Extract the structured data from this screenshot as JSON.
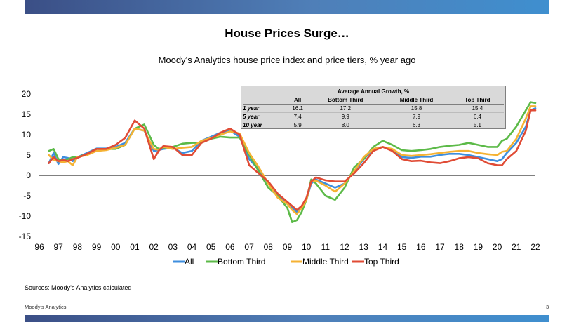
{
  "header": {
    "title": "House Prices Surge…",
    "subtitle": "Moody’s Analytics house price index and price tiers, % year ago"
  },
  "stats_table": {
    "caption": "Average Annual Growth, %",
    "columns": [
      "All",
      "Bottom Third",
      "Middle Third",
      "Top Third"
    ],
    "rows": [
      {
        "label": "1 year",
        "values": [
          "16.1",
          "17.2",
          "15.8",
          "15.4"
        ]
      },
      {
        "label": "5 year",
        "values": [
          "7.4",
          "9.9",
          "7.9",
          "6.4"
        ]
      },
      {
        "label": "10 year",
        "values": [
          "5.9",
          "8.0",
          "6.3",
          "5.1"
        ]
      }
    ]
  },
  "footer": {
    "source": "Sources: Moody’s Analytics calculated",
    "org": "Moody’s Analytics",
    "page": "3"
  },
  "chart_data": {
    "type": "line",
    "title": "",
    "xlabel": "",
    "ylabel": "",
    "xlim": [
      1996,
      2022
    ],
    "ylim": [
      -15,
      20
    ],
    "yticks": [
      20,
      15,
      10,
      5,
      0,
      -5,
      -10,
      -15
    ],
    "xtick_labels": [
      "96",
      "97",
      "98",
      "99",
      "00",
      "01",
      "02",
      "03",
      "04",
      "05",
      "06",
      "07",
      "08",
      "09",
      "10",
      "11",
      "12",
      "13",
      "14",
      "15",
      "16",
      "17",
      "18",
      "19",
      "20",
      "21",
      "22"
    ],
    "grid": false,
    "legend_position": "bottom",
    "series": [
      {
        "name": "All",
        "color": "#3e8ede",
        "x": [
          1996.5,
          1996.75,
          1997,
          1997.25,
          1997.5,
          1997.75,
          1998,
          1998.5,
          1999,
          1999.5,
          2000,
          2000.5,
          2001,
          2001.5,
          2002,
          2002.25,
          2002.5,
          2003,
          2003.5,
          2004,
          2004.5,
          2005,
          2005.5,
          2006,
          2006.5,
          2007,
          2007.5,
          2008,
          2008.5,
          2009,
          2009.25,
          2009.5,
          2009.75,
          2010,
          2010.25,
          2010.5,
          2011,
          2011.5,
          2012,
          2012.5,
          2013,
          2013.5,
          2014,
          2014.5,
          2015,
          2015.5,
          2016,
          2016.5,
          2017,
          2017.5,
          2018,
          2018.5,
          2019,
          2019.5,
          2020,
          2020.25,
          2020.5,
          2021,
          2021.5,
          2021.75,
          2022
        ],
        "y": [
          3,
          5.5,
          2.8,
          4.5,
          4.3,
          3.5,
          4.5,
          5.5,
          6.6,
          6.6,
          7,
          8,
          11.5,
          11,
          6,
          6.2,
          6.5,
          6.8,
          5.5,
          6,
          8.5,
          9.5,
          10.5,
          11,
          9.5,
          4,
          1.5,
          -2,
          -5,
          -7,
          -8,
          -9,
          -8,
          -6,
          -2,
          -1,
          -2,
          -3,
          -2,
          1,
          4,
          6.5,
          7,
          6.3,
          4.5,
          4.3,
          4.6,
          4.6,
          5,
          5.3,
          5.3,
          5,
          4.5,
          4,
          3.5,
          4,
          5.5,
          8,
          12,
          16,
          16.5
        ]
      },
      {
        "name": "Bottom Third",
        "color": "#5cba48",
        "x": [
          1996.5,
          1996.75,
          1997,
          1997.25,
          1997.5,
          1997.75,
          1998,
          1998.5,
          1999,
          1999.5,
          2000,
          2000.5,
          2001,
          2001.5,
          2002,
          2002.25,
          2002.5,
          2003,
          2003.5,
          2004,
          2004.5,
          2005,
          2005.5,
          2006,
          2006.5,
          2007,
          2007.5,
          2008,
          2008.5,
          2009,
          2009.25,
          2009.5,
          2009.75,
          2010,
          2010.25,
          2010.5,
          2011,
          2011.5,
          2012,
          2012.5,
          2013,
          2013.5,
          2014,
          2014.5,
          2015,
          2015.5,
          2016,
          2016.5,
          2017,
          2017.5,
          2018,
          2018.5,
          2019,
          2019.5,
          2020,
          2020.25,
          2020.5,
          2021,
          2021.5,
          2021.75,
          2022
        ],
        "y": [
          6,
          6.5,
          4,
          3.8,
          4,
          4.5,
          4.5,
          5.2,
          6.5,
          6.5,
          6.5,
          7.5,
          11.5,
          12.5,
          7.5,
          6.5,
          6.8,
          7,
          7.8,
          8,
          8,
          9,
          9.5,
          9.3,
          9.3,
          5,
          1,
          -3,
          -5,
          -8,
          -11.5,
          -11,
          -9,
          -6,
          -1,
          -2,
          -5,
          -6,
          -3,
          2,
          4,
          7,
          8.5,
          7.5,
          6.2,
          6,
          6.2,
          6.5,
          7,
          7.3,
          7.5,
          8,
          7.5,
          7,
          7,
          8.5,
          9,
          12,
          16,
          18,
          17.8
        ]
      },
      {
        "name": "Middle Third",
        "color": "#f5b233",
        "x": [
          1996.5,
          1996.75,
          1997,
          1997.25,
          1997.5,
          1997.75,
          1998,
          1998.5,
          1999,
          1999.5,
          2000,
          2000.5,
          2001,
          2001.5,
          2002,
          2002.25,
          2002.5,
          2003,
          2003.5,
          2004,
          2004.5,
          2005,
          2005.5,
          2006,
          2006.5,
          2007,
          2007.5,
          2008,
          2008.5,
          2009,
          2009.25,
          2009.5,
          2009.75,
          2010,
          2010.25,
          2010.5,
          2011,
          2011.5,
          2012,
          2012.5,
          2013,
          2013.5,
          2014,
          2014.5,
          2015,
          2015.5,
          2016,
          2016.5,
          2017,
          2017.5,
          2018,
          2018.5,
          2019,
          2019.5,
          2020,
          2020.25,
          2020.5,
          2021,
          2021.5,
          2021.75,
          2022
        ],
        "y": [
          5,
          3.8,
          3.5,
          3.2,
          3.5,
          2.5,
          4.5,
          5,
          6,
          6.2,
          6.8,
          7.5,
          11.5,
          11,
          6.5,
          6.3,
          7,
          6.5,
          6.8,
          7,
          8.5,
          9.2,
          10,
          10.8,
          10.3,
          5.5,
          2,
          -2,
          -5.5,
          -7,
          -8.5,
          -9.5,
          -8,
          -6,
          -1.5,
          -1.3,
          -2.5,
          -4,
          -2,
          1,
          4.5,
          6.5,
          7,
          6.5,
          5,
          4.8,
          5,
          5.2,
          5.5,
          5.8,
          6,
          6,
          5.5,
          5.2,
          5,
          5.8,
          6,
          9,
          14,
          17,
          17
        ]
      },
      {
        "name": "Top Third",
        "color": "#e04b35",
        "x": [
          1996.5,
          1996.75,
          1997,
          1997.25,
          1997.5,
          1997.75,
          1998,
          1998.5,
          1999,
          1999.5,
          2000,
          2000.5,
          2001,
          2001.5,
          2002,
          2002.25,
          2002.5,
          2003,
          2003.5,
          2004,
          2004.5,
          2005,
          2005.5,
          2006,
          2006.5,
          2007,
          2007.5,
          2008,
          2008.5,
          2009,
          2009.25,
          2009.5,
          2009.75,
          2010,
          2010.25,
          2010.5,
          2011,
          2011.5,
          2012,
          2012.5,
          2013,
          2013.5,
          2014,
          2014.5,
          2015,
          2015.5,
          2016,
          2016.5,
          2017,
          2017.5,
          2018,
          2018.5,
          2019,
          2019.5,
          2020,
          2020.25,
          2020.5,
          2021,
          2021.5,
          2021.75,
          2022
        ],
        "y": [
          3,
          4.5,
          3.5,
          3.8,
          3.5,
          4,
          4.3,
          5.3,
          6.5,
          6.5,
          7.5,
          9.2,
          13.5,
          11.5,
          4,
          6,
          7.2,
          7,
          5,
          5,
          8,
          9,
          10.5,
          11.5,
          10,
          2.5,
          0.5,
          -1.5,
          -4.5,
          -6.5,
          -7.5,
          -8.5,
          -7.5,
          -5.5,
          -1.5,
          -0.5,
          -1.2,
          -1.5,
          -1.5,
          0.5,
          3,
          6,
          7,
          6,
          4,
          3.5,
          3.6,
          3.2,
          3,
          3.5,
          4.2,
          4.5,
          4.2,
          3,
          2.5,
          2.5,
          4,
          6,
          11,
          16,
          16
        ]
      }
    ]
  }
}
